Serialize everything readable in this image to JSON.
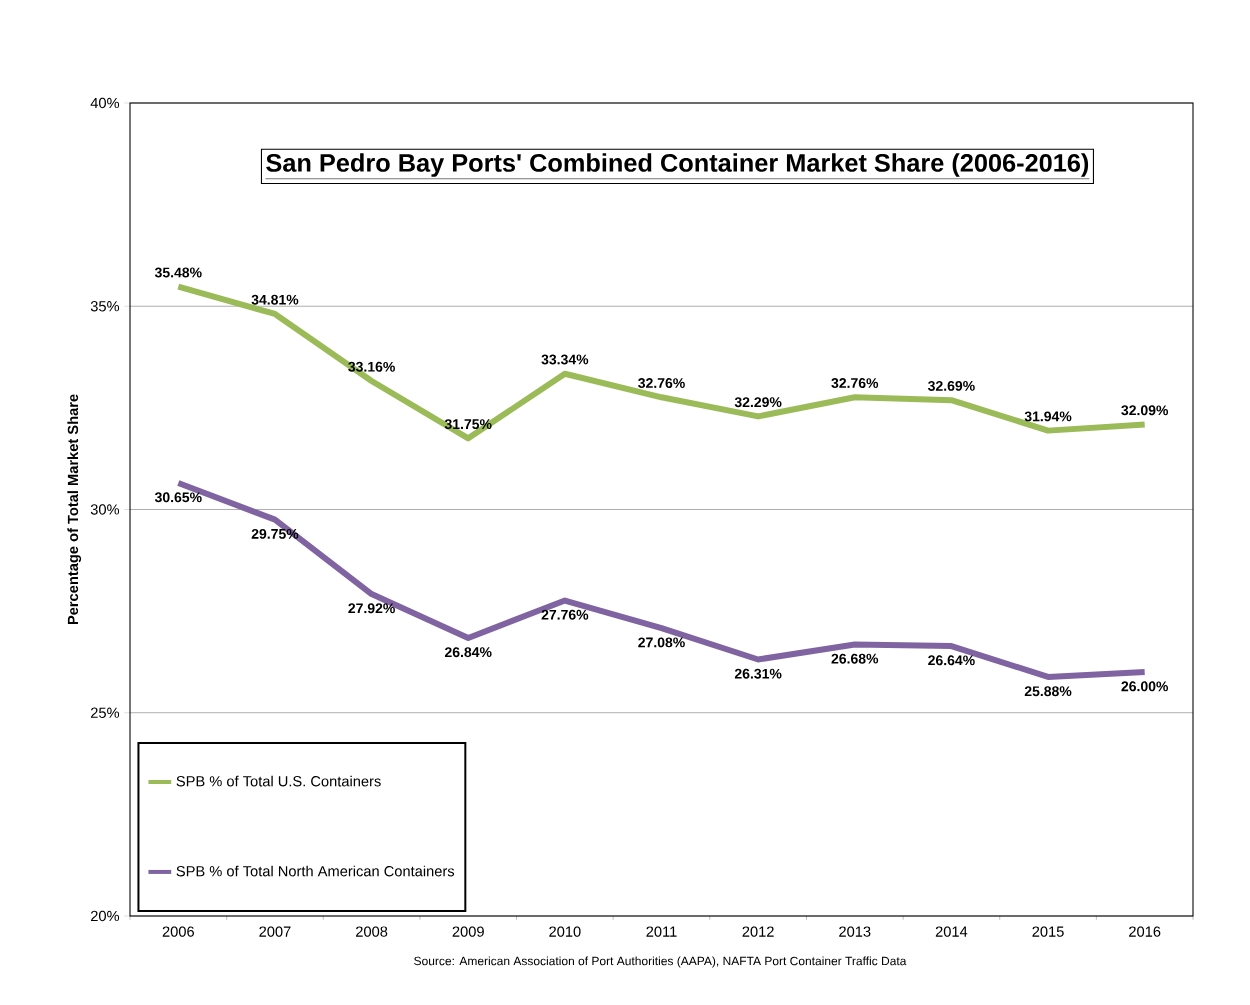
{
  "chart_data": {
    "type": "line",
    "title": "San Pedro Bay Ports' Combined Container Market Share  (2006-2016)",
    "ylabel": "Percentage of Total Market Share",
    "annotations": [
      "Source:  American Association of Port Authorities (AAPA),  NAFTA Port Container Traffic Data"
    ],
    "categories": [
      "2006",
      "2007",
      "2008",
      "2009",
      "2010",
      "2011",
      "2012",
      "2013",
      "2014",
      "2015",
      "2016"
    ],
    "series": [
      {
        "name": "SPB % of Total U.S. Containers",
        "color": "#9bbb59",
        "values": [
          35.48,
          34.81,
          33.16,
          31.75,
          33.34,
          32.76,
          32.29,
          32.76,
          32.69,
          31.94,
          32.09
        ],
        "value_labels": [
          "35.48%",
          "34.81%",
          "33.16%",
          "31.75%",
          "33.34%",
          "32.76%",
          "32.29%",
          "32.76%",
          "32.69%",
          "31.94%",
          "32.09%"
        ]
      },
      {
        "name": "SPB % of Total North American Containers",
        "color": "#8064a2",
        "values": [
          30.65,
          29.75,
          27.92,
          26.84,
          27.76,
          27.08,
          26.31,
          26.68,
          26.64,
          25.88,
          26.0
        ],
        "value_labels": [
          "30.65%",
          "29.75%",
          "27.92%",
          "26.84%",
          "27.76%",
          "27.08%",
          "26.31%",
          "26.68%",
          "26.64%",
          "25.88%",
          "26.00%"
        ]
      }
    ],
    "ylim": [
      20,
      40
    ],
    "yticks": [
      {
        "value": 20,
        "label": "20%"
      },
      {
        "value": 25,
        "label": "25%"
      },
      {
        "value": 30,
        "label": "30%"
      },
      {
        "value": 35,
        "label": "35%"
      },
      {
        "value": 40,
        "label": "40%"
      }
    ],
    "grid": "y",
    "legend": "bottom left",
    "line_style": "solid"
  }
}
